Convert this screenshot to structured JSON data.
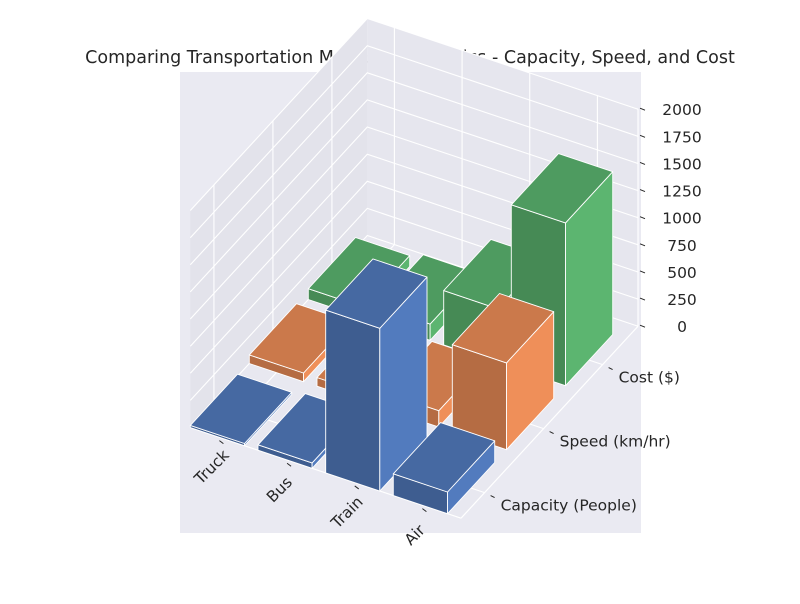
{
  "chart_data": {
    "type": "bar",
    "title": "Comparing Transportation Modes for Logistics - Capacity, Speed, and Cost",
    "categories": [
      "Truck",
      "Bus",
      "Train",
      "Air"
    ],
    "series": [
      {
        "name": "Capacity (People)",
        "values": [
          20,
          50,
          1500,
          200
        ],
        "color": "#4c72b0"
      },
      {
        "name": "Speed (km/hr)",
        "values": [
          80,
          80,
          150,
          800
        ],
        "color": "#dd8452"
      },
      {
        "name": "Cost ($)",
        "values": [
          100,
          150,
          500,
          1500
        ],
        "color": "#55a868"
      }
    ],
    "zlim": [
      0,
      2000
    ],
    "z_ticks": [
      "0",
      "250",
      "500",
      "750",
      "1000",
      "1250",
      "1500",
      "1750",
      "2000"
    ],
    "grid": true,
    "background": "#eaeaf2"
  }
}
